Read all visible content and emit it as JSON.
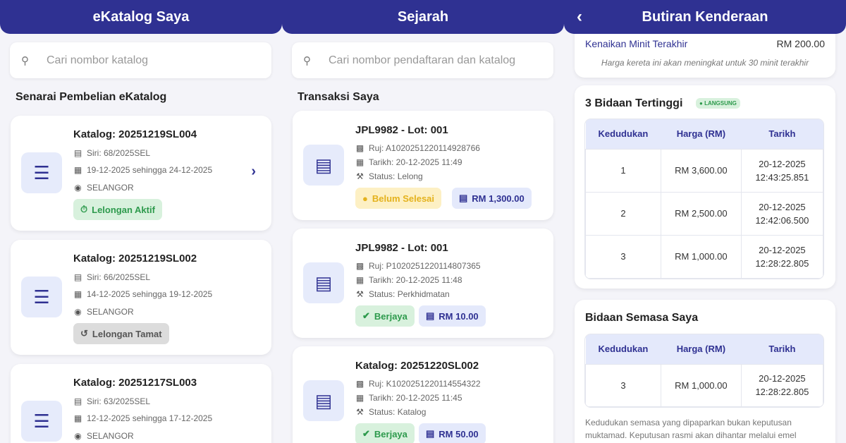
{
  "panel1": {
    "title": "eKatalog Saya",
    "search_placeholder": "Cari nombor katalog",
    "section": "Senarai Pembelian eKatalog",
    "cards": [
      {
        "title": "Katalog: 20251219SL004",
        "siri": "Siri: 68/2025SEL",
        "dates": "19-12-2025 sehingga 24-12-2025",
        "location": "SELANGOR",
        "status": "Lelongan Aktif"
      },
      {
        "title": "Katalog: 20251219SL002",
        "siri": "Siri: 66/2025SEL",
        "dates": "14-12-2025 sehingga 19-12-2025",
        "location": "SELANGOR",
        "status": "Lelongan Tamat"
      },
      {
        "title": "Katalog: 20251217SL003",
        "siri": "Siri: 63/2025SEL",
        "dates": "12-12-2025 sehingga 17-12-2025",
        "location": "SELANGOR"
      }
    ]
  },
  "panel2": {
    "title": "Sejarah",
    "search_placeholder": "Cari nombor pendaftaran dan katalog",
    "section": "Transaksi Saya",
    "cards": [
      {
        "title": "JPL9982 - Lot: 001",
        "ref": "Ruj: A1020251220114928766",
        "date": "Tarikh: 20-12-2025 11:49",
        "status": "Status: Lelong",
        "badge": "Belum Selesai",
        "amount": "RM 1,300.00"
      },
      {
        "title": "JPL9982 - Lot: 001",
        "ref": "Ruj: P1020251220114807365",
        "date": "Tarikh: 20-12-2025 11:48",
        "status": "Status: Perkhidmatan",
        "badge": "Berjaya",
        "amount": "RM 10.00"
      },
      {
        "title": "Katalog: 20251220SL002",
        "ref": "Ruj: K1020251220114554322",
        "date": "Tarikh: 20-12-2025 11:45",
        "status": "Status: Katalog",
        "badge": "Berjaya",
        "amount": "RM 50.00"
      }
    ]
  },
  "panel3": {
    "title": "Butiran Kenderaan",
    "increment_label": "Kenaikan Minit Terakhir",
    "increment_value": "RM 200.00",
    "increment_note": "Harga kereta ini akan meningkat untuk 30 minit terakhir",
    "top_bids_title": "3 Bidaan Tertinggi",
    "live_badge": "LANGSUNG",
    "columns": [
      "Kedudukan",
      "Harga (RM)",
      "Tarikh"
    ],
    "top_bids": [
      {
        "rank": "1",
        "price": "RM 3,600.00",
        "date": "20-12-2025",
        "time": "12:43:25.851"
      },
      {
        "rank": "2",
        "price": "RM 2,500.00",
        "date": "20-12-2025",
        "time": "12:42:06.500"
      },
      {
        "rank": "3",
        "price": "RM 1,000.00",
        "date": "20-12-2025",
        "time": "12:28:22.805"
      }
    ],
    "my_bid_title": "Bidaan Semasa Saya",
    "my_bid": {
      "rank": "3",
      "price": "RM 1,000.00",
      "date": "20-12-2025",
      "time": "12:28:22.805"
    },
    "disclaimer": "Kedudukan semasa yang dipaparkan bukan keputusan muktamad. Keputusan rasmi akan dihantar melalui emel berdaftar."
  }
}
